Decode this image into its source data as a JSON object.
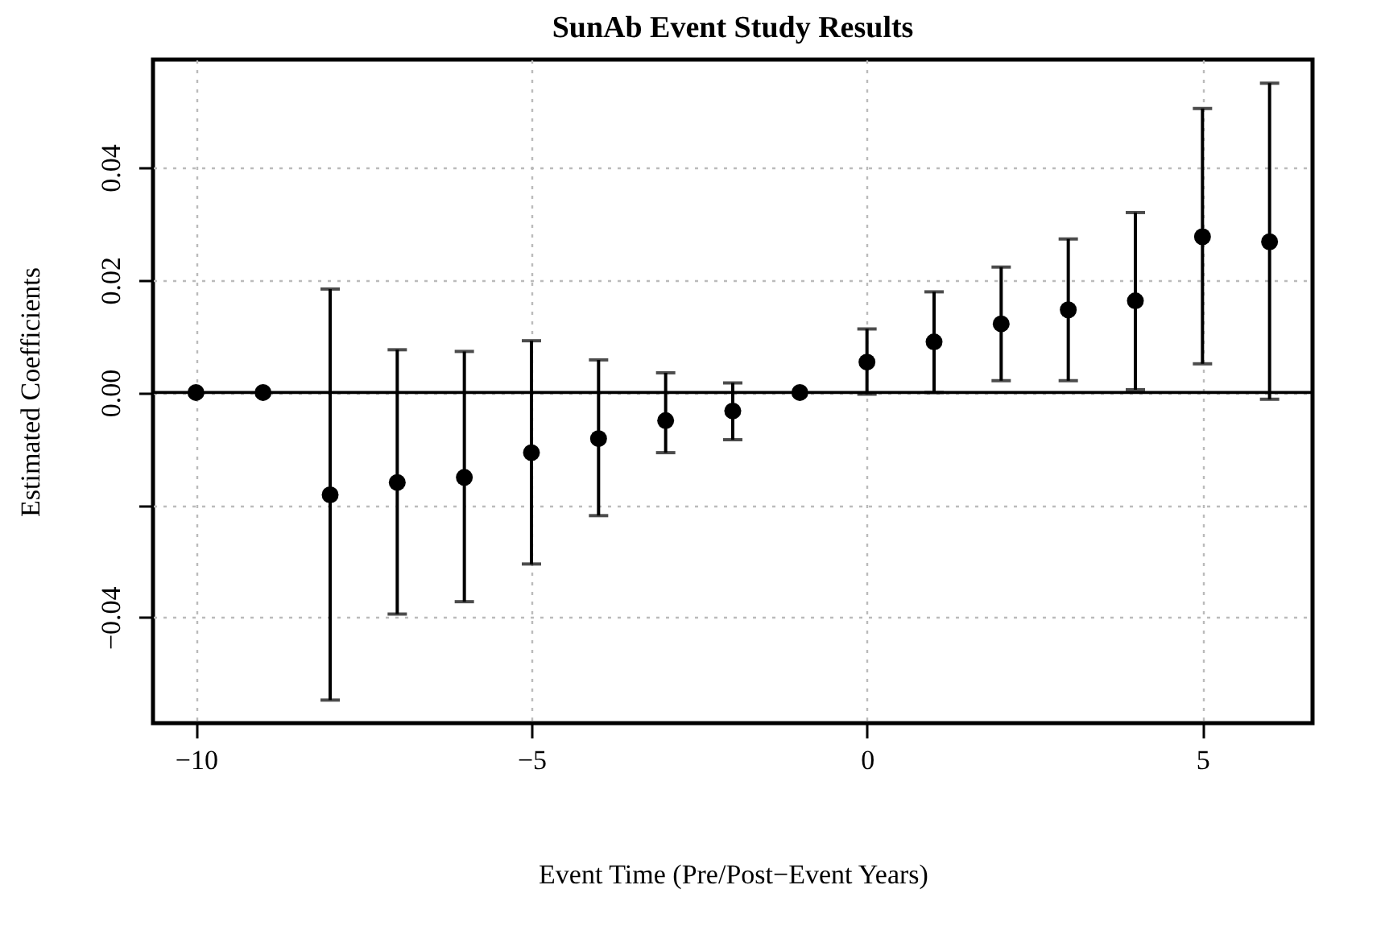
{
  "chart_data": {
    "type": "scatter",
    "title": "SunAb Event Study Results",
    "xlabel": "Event Time (Pre/Post−Event Years)",
    "ylabel": "Estimated Coefficients",
    "x": [
      -10,
      -9,
      -8,
      -7,
      -6,
      -5,
      -4,
      -3,
      -2,
      -1,
      0,
      1,
      2,
      3,
      4,
      5,
      6
    ],
    "series": [
      {
        "color": "#000000",
        "values": [
          0,
          0,
          -0.0182,
          -0.016,
          -0.0151,
          -0.0107,
          -0.0082,
          -0.005,
          -0.0033,
          0,
          0.0054,
          0.009,
          0.0122,
          0.0147,
          0.0163,
          0.0277,
          0.0268
        ],
        "errors": [
          null,
          null,
          [
            -0.0547,
            0.0184
          ],
          [
            -0.0394,
            0.0076
          ],
          [
            -0.0372,
            0.0073
          ],
          [
            -0.0305,
            0.0092
          ],
          [
            -0.0219,
            0.0058
          ],
          [
            -0.0107,
            0.0035
          ],
          [
            -0.0084,
            0.0017
          ],
          null,
          [
            -0.0003,
            0.0113
          ],
          [
            0,
            0.0179
          ],
          [
            0.0021,
            0.0223
          ],
          [
            0.0021,
            0.0273
          ],
          [
            0.0005,
            0.032
          ],
          [
            0.0051,
            0.0505
          ],
          [
            -0.0012,
            0.055
          ]
        ]
      }
    ],
    "xlim": [
      -10.64,
      6.64
    ],
    "xticks": [
      {
        "value": -10,
        "label": "−10"
      },
      {
        "value": -5,
        "label": "−5"
      },
      0,
      5
    ],
    "ylim": [
      -0.0588,
      0.0592
    ],
    "yticks": [
      {
        "value": -0.04,
        "label": "−0.04"
      },
      {
        "value": -0.02,
        "label": null
      },
      {
        "value": 0,
        "label": "0.00"
      },
      {
        "value": 0.02,
        "label": "0.02"
      },
      {
        "value": 0.04,
        "label": "0.04"
      }
    ],
    "ref_lines": [
      {
        "axis": "y",
        "value": 0,
        "color": "#000000",
        "line_style": "solid"
      }
    ],
    "grid": true,
    "marker": "circle"
  }
}
